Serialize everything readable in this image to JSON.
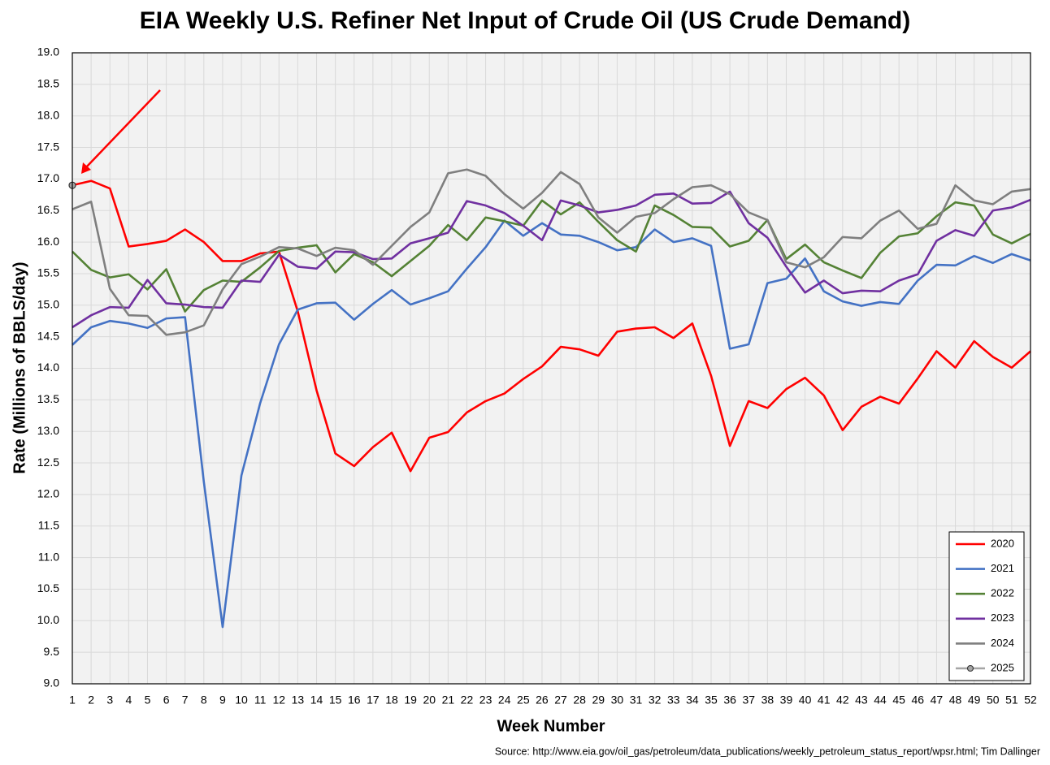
{
  "chart_data": {
    "type": "line",
    "title": "EIA Weekly U.S. Refiner Net Input of Crude Oil (US Crude Demand)",
    "xlabel": "Week Number",
    "ylabel": "Rate (Millions of BBLS/day)",
    "source": "Source: http://www.eia.gov/oil_gas/petroleum/data_publications/weekly_petroleum_status_report/wpsr.html; Tim Dallinger",
    "x": [
      1,
      2,
      3,
      4,
      5,
      6,
      7,
      8,
      9,
      10,
      11,
      12,
      13,
      14,
      15,
      16,
      17,
      18,
      19,
      20,
      21,
      22,
      23,
      24,
      25,
      26,
      27,
      28,
      29,
      30,
      31,
      32,
      33,
      34,
      35,
      36,
      37,
      38,
      39,
      40,
      41,
      42,
      43,
      44,
      45,
      46,
      47,
      48,
      49,
      50,
      51,
      52
    ],
    "xlim": [
      1,
      52
    ],
    "xticks": [
      1,
      2,
      3,
      4,
      5,
      6,
      7,
      8,
      9,
      10,
      11,
      12,
      13,
      14,
      15,
      16,
      17,
      18,
      19,
      20,
      21,
      22,
      23,
      24,
      25,
      26,
      27,
      28,
      29,
      30,
      31,
      32,
      33,
      34,
      35,
      36,
      37,
      38,
      39,
      40,
      41,
      42,
      43,
      44,
      45,
      46,
      47,
      48,
      49,
      50,
      51,
      52
    ],
    "ylim": [
      9,
      19
    ],
    "yticks": [
      {
        "value": 9,
        "label": "9.0"
      },
      {
        "value": 9.5,
        "label": "9.5"
      },
      {
        "value": 10,
        "label": "10.0"
      },
      {
        "value": 10.5,
        "label": "10.5"
      },
      {
        "value": 11,
        "label": "11.0"
      },
      {
        "value": 11.5,
        "label": "11.5"
      },
      {
        "value": 12,
        "label": "12.0"
      },
      {
        "value": 12.5,
        "label": "12.5"
      },
      {
        "value": 13,
        "label": "13.0"
      },
      {
        "value": 13.5,
        "label": "13.5"
      },
      {
        "value": 14,
        "label": "14.0"
      },
      {
        "value": 14.5,
        "label": "14.5"
      },
      {
        "value": 15,
        "label": "15.0"
      },
      {
        "value": 15.5,
        "label": "15.5"
      },
      {
        "value": 16,
        "label": "16.0"
      },
      {
        "value": 16.5,
        "label": "16.5"
      },
      {
        "value": 17,
        "label": "17.0"
      },
      {
        "value": 17.5,
        "label": "17.5"
      },
      {
        "value": 18,
        "label": "18.0"
      },
      {
        "value": 18.5,
        "label": "18.5"
      },
      {
        "value": 19,
        "label": "19.0"
      }
    ],
    "grid": true,
    "legend": "lower right",
    "series": [
      {
        "name": "2020",
        "color": "#ff0000",
        "values": [
          16.9,
          16.97,
          16.85,
          15.93,
          15.97,
          16.02,
          16.2,
          16.0,
          15.7,
          15.7,
          15.82,
          15.85,
          14.9,
          13.65,
          12.65,
          12.45,
          12.75,
          12.98,
          12.37,
          12.9,
          12.99,
          13.3,
          13.48,
          13.6,
          13.83,
          14.03,
          14.34,
          14.3,
          14.2,
          14.58,
          14.63,
          14.65,
          14.48,
          14.71,
          13.88,
          12.77,
          13.48,
          13.37,
          13.67,
          13.85,
          13.57,
          13.02,
          13.39,
          13.55,
          13.44,
          13.84,
          14.27,
          14.01,
          14.43,
          14.18,
          14.01,
          14.27
        ]
      },
      {
        "name": "2021",
        "color": "#4472c4",
        "values": [
          14.37,
          14.65,
          14.75,
          14.71,
          14.64,
          14.79,
          14.81,
          12.2,
          9.9,
          12.3,
          13.45,
          14.38,
          14.93,
          15.03,
          15.04,
          14.77,
          15.02,
          15.24,
          15.01,
          15.11,
          15.22,
          15.58,
          15.92,
          16.34,
          16.1,
          16.3,
          16.12,
          16.1,
          16.0,
          15.87,
          15.92,
          16.2,
          16.0,
          16.06,
          15.94,
          14.31,
          14.38,
          15.35,
          15.42,
          15.74,
          15.22,
          15.06,
          14.99,
          15.05,
          15.02,
          15.39,
          15.64,
          15.63,
          15.78,
          15.67,
          15.81,
          15.71
        ]
      },
      {
        "name": "2022",
        "color": "#548235",
        "values": [
          15.85,
          15.56,
          15.44,
          15.49,
          15.25,
          15.57,
          14.9,
          15.24,
          15.39,
          15.37,
          15.6,
          15.86,
          15.91,
          15.95,
          15.52,
          15.81,
          15.68,
          15.46,
          15.7,
          15.94,
          16.27,
          16.03,
          16.39,
          16.33,
          16.26,
          16.66,
          16.44,
          16.63,
          16.32,
          16.03,
          15.85,
          16.58,
          16.43,
          16.24,
          16.23,
          15.93,
          16.02,
          16.35,
          15.73,
          15.96,
          15.68,
          15.55,
          15.43,
          15.83,
          16.09,
          16.14,
          16.41,
          16.63,
          16.58,
          16.12,
          15.98,
          16.13
        ]
      },
      {
        "name": "2023",
        "color": "#7030a0",
        "values": [
          14.65,
          14.84,
          14.97,
          14.96,
          15.4,
          15.03,
          15.01,
          14.97,
          14.96,
          15.39,
          15.37,
          15.8,
          15.61,
          15.58,
          15.85,
          15.84,
          15.73,
          15.74,
          15.98,
          16.06,
          16.15,
          16.65,
          16.58,
          16.46,
          16.26,
          16.03,
          16.66,
          16.58,
          16.47,
          16.51,
          16.58,
          16.75,
          16.77,
          16.61,
          16.62,
          16.8,
          16.3,
          16.07,
          15.61,
          15.2,
          15.39,
          15.19,
          15.23,
          15.22,
          15.39,
          15.49,
          16.02,
          16.19,
          16.1,
          16.5,
          16.55,
          16.67
        ]
      },
      {
        "name": "2024",
        "color": "#7f7f7f",
        "values": [
          16.52,
          16.64,
          15.26,
          14.84,
          14.83,
          14.53,
          14.57,
          14.68,
          15.25,
          15.65,
          15.77,
          15.92,
          15.9,
          15.78,
          15.91,
          15.87,
          15.64,
          15.94,
          16.24,
          16.47,
          17.09,
          17.15,
          17.05,
          16.76,
          16.53,
          16.78,
          17.11,
          16.92,
          16.39,
          16.15,
          16.4,
          16.46,
          16.68,
          16.87,
          16.9,
          16.76,
          16.47,
          16.35,
          15.68,
          15.6,
          15.76,
          16.08,
          16.06,
          16.34,
          16.5,
          16.21,
          16.29,
          16.9,
          16.66,
          16.6,
          16.8,
          16.84
        ]
      },
      {
        "name": "2025",
        "color": "#a5a5a5",
        "marker": true,
        "values": [
          16.9,
          null,
          null,
          null,
          null,
          null,
          null,
          null,
          null,
          null,
          null,
          null,
          null,
          null,
          null,
          null,
          null,
          null,
          null,
          null,
          null,
          null,
          null,
          null,
          null,
          null,
          null,
          null,
          null,
          null,
          null,
          null,
          null,
          null,
          null,
          null,
          null,
          null,
          null,
          null,
          null,
          null,
          null,
          null,
          null,
          null,
          null,
          null,
          null,
          null,
          null,
          null
        ]
      }
    ]
  }
}
